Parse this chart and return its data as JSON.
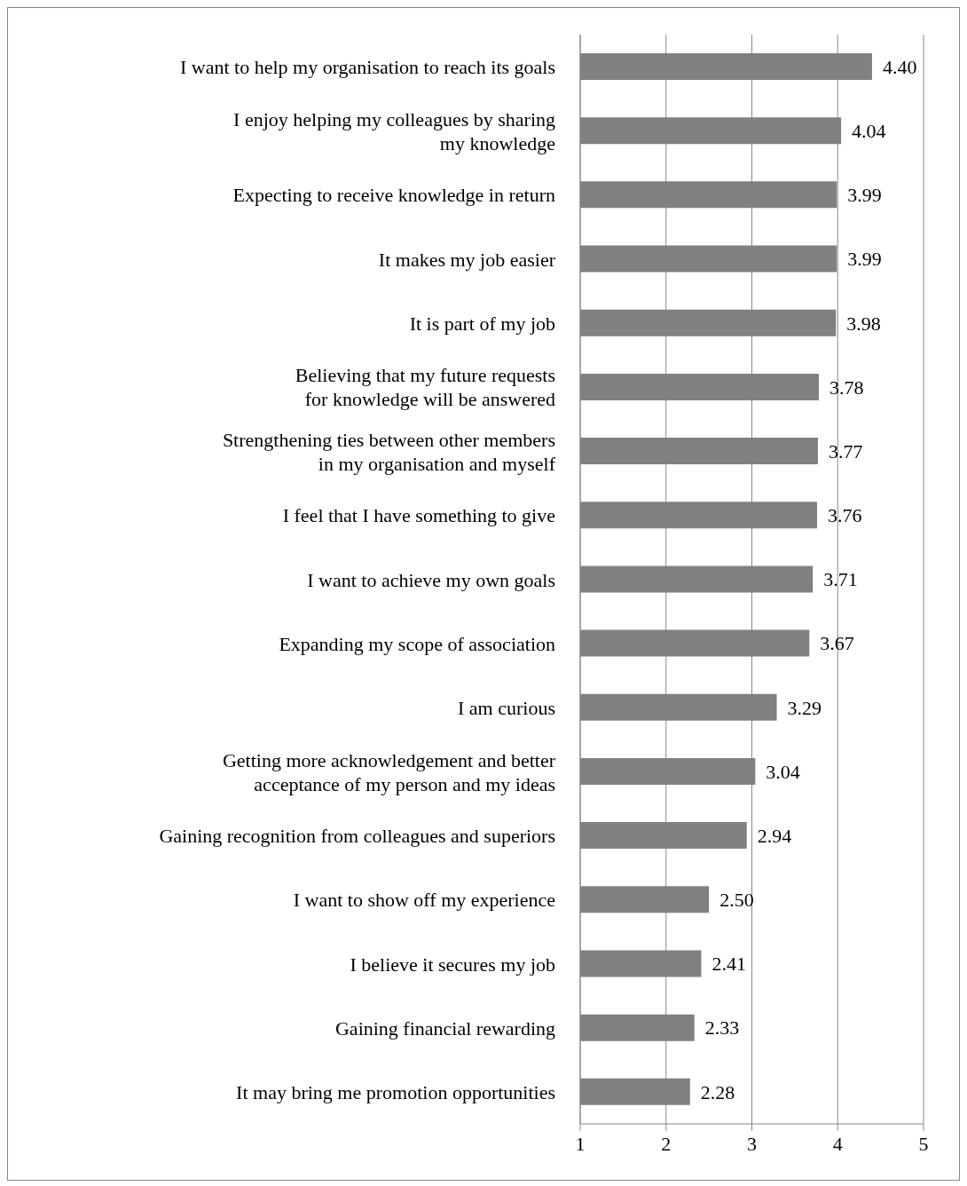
{
  "chart_data": {
    "type": "bar",
    "orientation": "horizontal",
    "categories": [
      "I want to help my organisation to reach its goals",
      "I enjoy helping my colleagues by sharing\nmy knowledge",
      "Expecting to receive knowledge in return",
      "It makes my job easier",
      "It is part of my job",
      "Believing that my future requests\nfor knowledge will be answered",
      "Strengthening ties between other members\nin my organisation and myself",
      "I feel that I have something to give",
      "I want to achieve my own goals",
      "Expanding my scope of association",
      "I am curious",
      "Getting more acknowledgement and better\nacceptance of my person and my ideas",
      "Gaining recognition from colleagues and superiors",
      "I want to show off my experience",
      "I believe it secures my job",
      "Gaining financial rewarding",
      "It may bring me promotion opportunities"
    ],
    "values": [
      4.4,
      4.04,
      3.99,
      3.99,
      3.98,
      3.78,
      3.77,
      3.76,
      3.71,
      3.67,
      3.29,
      3.04,
      2.94,
      2.5,
      2.41,
      2.33,
      2.28
    ],
    "value_labels": [
      "4.40",
      "4.04",
      "3.99",
      "3.99",
      "3.98",
      "3.78",
      "3.77",
      "3.76",
      "3.71",
      "3.67",
      "3.29",
      "3.04",
      "2.94",
      "2.50",
      "2.41",
      "2.33",
      "2.28"
    ],
    "color": "#808080",
    "xlim": [
      1,
      5
    ],
    "xticks": [
      1,
      2,
      3,
      4,
      5
    ],
    "grid": "x"
  }
}
